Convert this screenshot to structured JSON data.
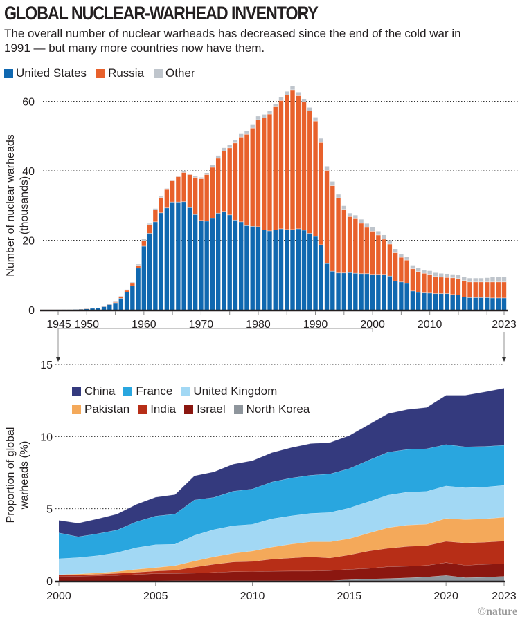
{
  "title": "GLOBAL NUCLEAR-WARHEAD INVENTORY",
  "subtitle": "The overall number of nuclear warheads has decreased since the end of the cold war in 1991 — but many more countries now have them.",
  "credit": "©nature",
  "chart_data": [
    {
      "type": "bar",
      "stacked": true,
      "title": "Global nuclear-warhead inventory",
      "xlabel": "",
      "ylabel": "Number of nuclear warheads (thousands)",
      "ylim": [
        0,
        60
      ],
      "yticks": [
        0,
        20,
        40,
        60
      ],
      "xticks": [
        "1945",
        "1950",
        "1960",
        "1970",
        "1980",
        "1990",
        "2000",
        "2010",
        "2023"
      ],
      "grid": true,
      "legend_position": "top-left",
      "x": [
        1945,
        1946,
        1947,
        1948,
        1949,
        1950,
        1951,
        1952,
        1953,
        1954,
        1955,
        1956,
        1957,
        1958,
        1959,
        1960,
        1961,
        1962,
        1963,
        1964,
        1965,
        1966,
        1967,
        1968,
        1969,
        1970,
        1971,
        1972,
        1973,
        1974,
        1975,
        1976,
        1977,
        1978,
        1979,
        1980,
        1981,
        1982,
        1983,
        1984,
        1985,
        1986,
        1987,
        1988,
        1989,
        1990,
        1991,
        1992,
        1993,
        1994,
        1995,
        1996,
        1997,
        1998,
        1999,
        2000,
        2001,
        2002,
        2003,
        2004,
        2005,
        2006,
        2007,
        2008,
        2009,
        2010,
        2011,
        2012,
        2013,
        2014,
        2015,
        2016,
        2017,
        2018,
        2019,
        2020,
        2021,
        2022,
        2023
      ],
      "series": [
        {
          "name": "United States",
          "color": "#1068b0",
          "values": [
            0.002,
            0.009,
            0.013,
            0.05,
            0.17,
            0.3,
            0.44,
            0.5,
            0.9,
            1.5,
            2.0,
            3.3,
            5.1,
            6.9,
            12.0,
            18.3,
            22.0,
            25.3,
            27.9,
            29.3,
            31.0,
            31.0,
            31.1,
            29.4,
            27.4,
            25.7,
            25.5,
            26.3,
            27.8,
            28.3,
            27.3,
            25.8,
            25.3,
            24.2,
            24.0,
            23.9,
            23.0,
            22.7,
            23.0,
            23.3,
            23.1,
            23.1,
            23.3,
            22.9,
            22.0,
            21.1,
            18.7,
            13.3,
            11.1,
            10.6,
            10.6,
            10.7,
            10.5,
            10.4,
            10.4,
            10.2,
            10.2,
            10.2,
            9.7,
            8.3,
            8.0,
            7.6,
            5.4,
            5.0,
            4.85,
            4.8,
            4.65,
            4.65,
            4.65,
            4.4,
            4.3,
            3.7,
            3.5,
            3.5,
            3.5,
            3.5,
            3.4,
            3.4,
            3.4
          ]
        },
        {
          "name": "Russia",
          "color": "#e8612c",
          "values": [
            0,
            0,
            0,
            0,
            0.001,
            0.005,
            0.025,
            0.05,
            0.12,
            0.15,
            0.2,
            0.4,
            0.5,
            0.7,
            0.8,
            1.5,
            2.5,
            3.5,
            4.4,
            5.3,
            6.1,
            7.3,
            8.4,
            9.5,
            10.7,
            12.0,
            13.4,
            14.7,
            15.8,
            17.4,
            19.3,
            22.2,
            24.4,
            26.3,
            28.3,
            30.8,
            32.2,
            33.6,
            35.4,
            36.9,
            38.7,
            40.2,
            38.3,
            36.9,
            35.2,
            33.2,
            29.4,
            26.8,
            24.6,
            21.6,
            18.3,
            16.1,
            15.7,
            14.5,
            13.3,
            12.4,
            11.3,
            10.1,
            9.2,
            8.1,
            7.1,
            6.7,
            6.4,
            6.0,
            5.65,
            5.4,
            4.95,
            4.75,
            4.65,
            4.8,
            4.7,
            4.7,
            4.5,
            4.5,
            4.5,
            4.5,
            4.6,
            4.6,
            4.6
          ]
        },
        {
          "name": "Other",
          "color": "#bfc5cc",
          "values": [
            0,
            0,
            0,
            0,
            0,
            0,
            0,
            0.05,
            0.05,
            0.1,
            0.2,
            0.2,
            0.2,
            0.3,
            0.3,
            0.5,
            0.3,
            0.3,
            0.3,
            0.3,
            0.3,
            0.3,
            0.3,
            0.3,
            0.3,
            0.4,
            0.5,
            0.7,
            0.8,
            0.9,
            0.9,
            0.9,
            0.9,
            0.9,
            0.9,
            1.0,
            1.0,
            0.9,
            0.9,
            0.9,
            1.0,
            1.0,
            1.0,
            0.9,
            1.0,
            1.1,
            1.2,
            1.2,
            1.2,
            1.0,
            1.0,
            1.0,
            1.0,
            1.1,
            1.1,
            1.1,
            1.1,
            1.2,
            1.1,
            1.1,
            1.0,
            0.9,
            1.0,
            1.0,
            1.0,
            1.0,
            1.05,
            1.05,
            1.05,
            1.0,
            1.0,
            1.1,
            1.1,
            1.1,
            1.1,
            1.2,
            1.4,
            1.4,
            1.5
          ]
        }
      ],
      "legend": [
        "United States",
        "Russia",
        "Other"
      ]
    },
    {
      "type": "area",
      "stacked": true,
      "title": "",
      "xlabel": "",
      "ylabel": "Proportion of global warheads (%)",
      "ylim": [
        0,
        15
      ],
      "yticks": [
        0,
        5,
        10,
        15
      ],
      "xticks": [
        "2000",
        "2005",
        "2010",
        "2015",
        "2020",
        "2023"
      ],
      "grid": true,
      "legend_position": "top-left",
      "x": [
        2000,
        2001,
        2002,
        2003,
        2004,
        2005,
        2006,
        2007,
        2008,
        2009,
        2010,
        2011,
        2012,
        2013,
        2014,
        2015,
        2016,
        2017,
        2018,
        2019,
        2020,
        2021,
        2022,
        2023
      ],
      "stack_order_bottom_to_top": [
        "North Korea",
        "Israel",
        "India",
        "Pakistan",
        "United Kingdom",
        "France",
        "China"
      ],
      "series": [
        {
          "name": "China",
          "color": "#343a7e",
          "values": [
            0.87,
            0.94,
            1.03,
            1.11,
            1.2,
            1.31,
            1.35,
            1.67,
            1.77,
            1.88,
            1.96,
            2.04,
            2.11,
            2.2,
            2.18,
            2.29,
            2.47,
            2.67,
            2.77,
            2.86,
            3.42,
            3.58,
            3.78,
            3.96
          ]
        },
        {
          "name": "France",
          "color": "#29a6df",
          "values": [
            1.79,
            1.44,
            1.52,
            1.57,
            1.8,
            1.98,
            2.09,
            2.46,
            2.23,
            2.39,
            2.45,
            2.55,
            2.62,
            2.64,
            2.67,
            2.73,
            2.87,
            2.98,
            2.96,
            2.96,
            2.87,
            2.84,
            2.82,
            2.78
          ]
        },
        {
          "name": "United Kingdom",
          "color": "#a2d8f4",
          "values": [
            1.1,
            1.14,
            1.2,
            1.3,
            1.5,
            1.59,
            1.48,
            1.77,
            1.88,
            1.91,
            1.85,
            1.96,
            1.96,
            1.97,
            2.03,
            2.12,
            2.18,
            2.25,
            2.28,
            2.27,
            2.25,
            2.2,
            2.2,
            2.21
          ]
        },
        {
          "name": "Pakistan",
          "color": "#f4a95a",
          "values": [
            0.04,
            0.06,
            0.09,
            0.13,
            0.2,
            0.24,
            0.32,
            0.42,
            0.52,
            0.6,
            0.72,
            0.83,
            0.96,
            1.04,
            1.12,
            1.13,
            1.24,
            1.43,
            1.48,
            1.48,
            1.59,
            1.62,
            1.62,
            1.65
          ]
        },
        {
          "name": "India",
          "color": "#b72e17",
          "values": [
            0.08,
            0.09,
            0.11,
            0.14,
            0.15,
            0.17,
            0.22,
            0.42,
            0.56,
            0.67,
            0.7,
            0.84,
            0.91,
            0.99,
            0.87,
            1.0,
            1.2,
            1.28,
            1.37,
            1.38,
            1.47,
            1.55,
            1.53,
            1.57
          ]
        },
        {
          "name": "Israel",
          "color": "#8b1710",
          "values": [
            0.32,
            0.33,
            0.35,
            0.38,
            0.45,
            0.51,
            0.51,
            0.53,
            0.58,
            0.63,
            0.64,
            0.66,
            0.67,
            0.67,
            0.7,
            0.72,
            0.74,
            0.82,
            0.81,
            0.8,
            0.89,
            0.86,
            0.9,
            0.87
          ]
        },
        {
          "name": "North Korea",
          "color": "#8e959c",
          "values": [
            0,
            0,
            0,
            0,
            0,
            0,
            0.01,
            0.01,
            0.01,
            0.01,
            0.01,
            0.01,
            0.01,
            0.01,
            0.02,
            0.08,
            0.13,
            0.16,
            0.21,
            0.27,
            0.38,
            0.22,
            0.25,
            0.32
          ]
        }
      ],
      "legend_rows": [
        [
          "China",
          "France",
          "United Kingdom"
        ],
        [
          "Pakistan",
          "India",
          "Israel",
          "North Korea"
        ]
      ]
    }
  ]
}
